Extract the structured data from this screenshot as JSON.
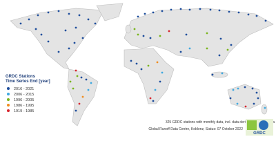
{
  "legend": {
    "title": "GRDC Stations",
    "subtitle": "Time Series End [year]",
    "items": [
      {
        "label": "2016 - 2021",
        "color": "#1f4e9c"
      },
      {
        "label": "2006 - 2015",
        "color": "#3fa9e0"
      },
      {
        "label": "1996 - 2005",
        "color": "#7ab51d"
      },
      {
        "label": "1986 - 1995",
        "color": "#f08c1e"
      },
      {
        "label": "1919 - 1985",
        "color": "#d7262f"
      }
    ]
  },
  "footer": {
    "note": "325 GRDC stations with monthly data, incl. data derived from daily data",
    "credit": "Global Runoff Data Centre, Koblenz, Status: 07 October 2022"
  },
  "logo": {
    "text": "GRDC"
  }
}
